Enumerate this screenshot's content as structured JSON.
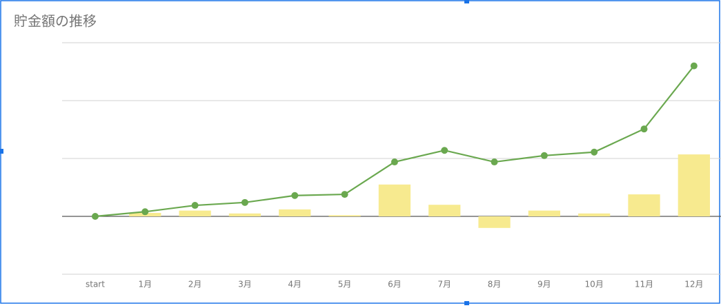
{
  "chart_data": {
    "type": "combo",
    "title": "貯金額の推移",
    "categories": [
      "start",
      "1月",
      "2月",
      "3月",
      "4月",
      "5月",
      "6月",
      "7月",
      "8月",
      "9月",
      "10月",
      "11月",
      "12月"
    ],
    "series": [
      {
        "type": "bar",
        "color": "#f7ea8f",
        "values": [
          null,
          0.06,
          0.1,
          0.05,
          0.12,
          0.02,
          0.55,
          0.2,
          -0.2,
          0.1,
          0.05,
          0.38,
          1.07
        ]
      },
      {
        "type": "line",
        "color": "#6aa84f",
        "values": [
          0,
          0.08,
          0.19,
          0.24,
          0.36,
          0.38,
          0.94,
          1.14,
          0.94,
          1.05,
          1.11,
          1.51,
          2.6
        ]
      }
    ],
    "ylim": [
      -1,
      3
    ],
    "yticks": [
      -1,
      0,
      1,
      2,
      3
    ],
    "grid": true
  }
}
